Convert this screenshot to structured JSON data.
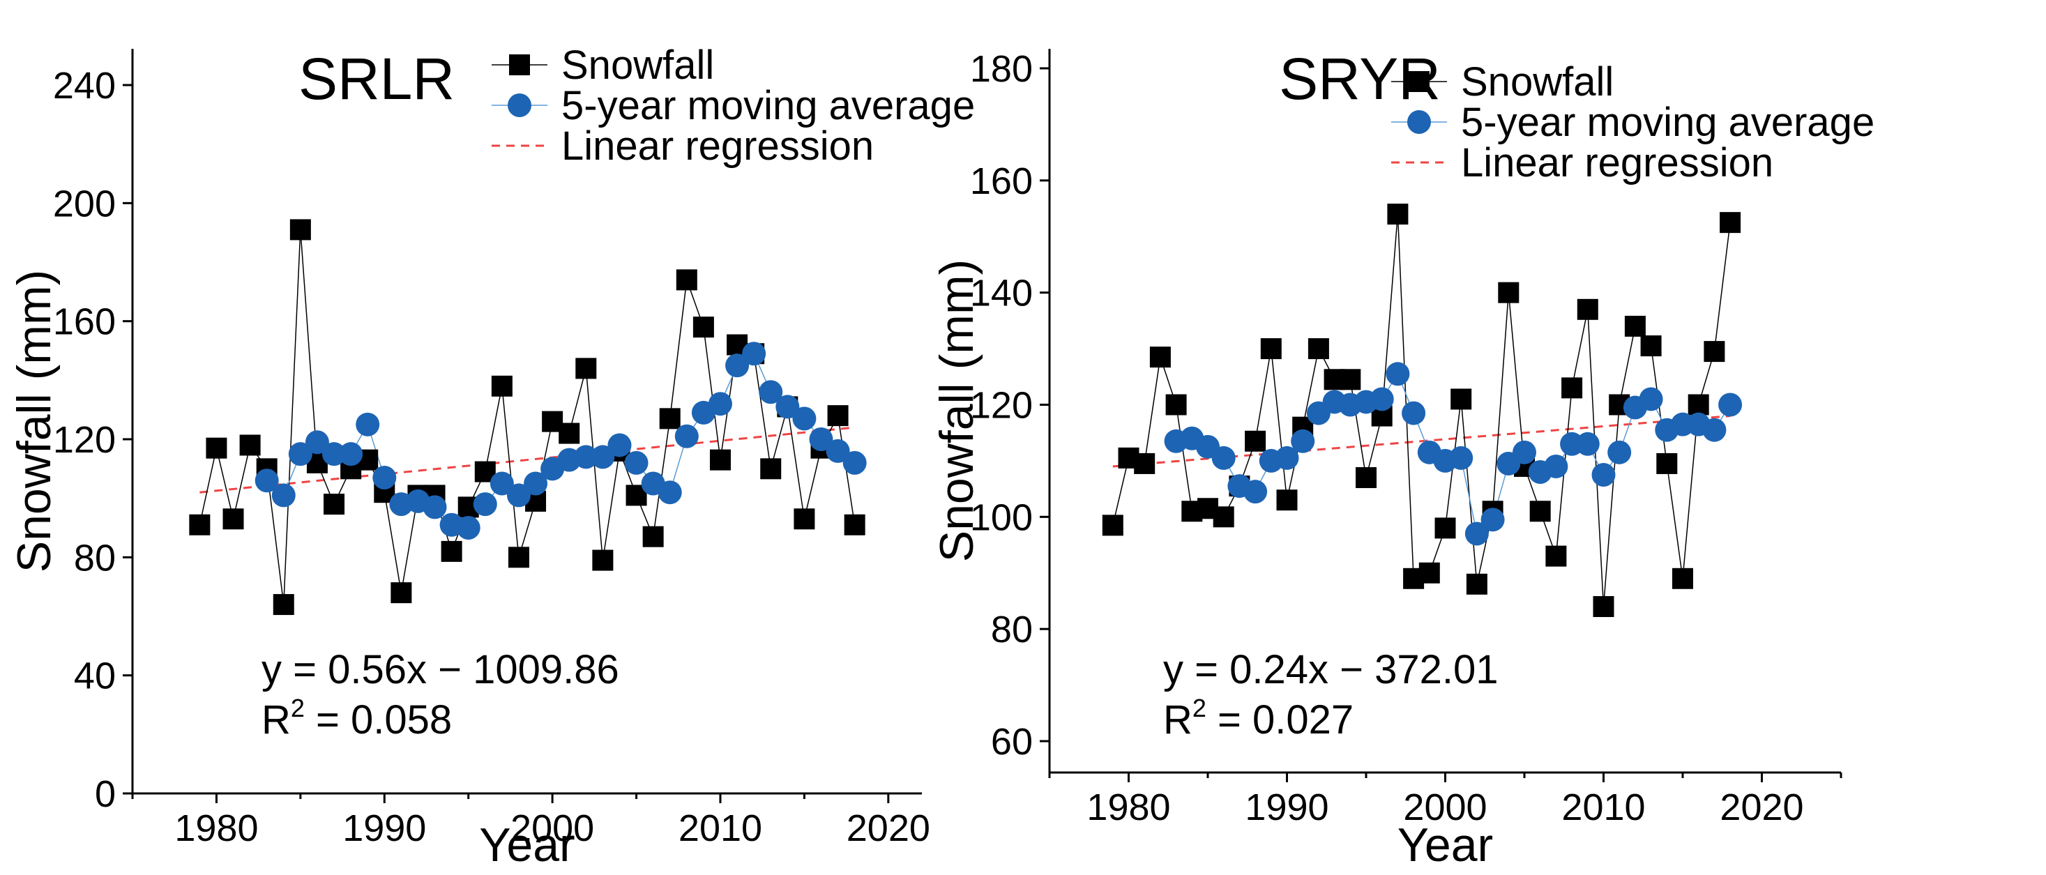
{
  "chart_data": [
    {
      "type": "line",
      "title": "SRLR",
      "xlabel": "Year",
      "ylabel": "Snowfall (mm)",
      "xlim": [
        1975,
        2022
      ],
      "ylim": [
        0,
        250
      ],
      "xticks": [
        1980,
        1990,
        2000,
        2010,
        2020
      ],
      "yticks": [
        0,
        40,
        80,
        120,
        160,
        200,
        240
      ],
      "grid": false,
      "legend_position": "top-right",
      "equation": "y = 0.56x − 1009.86",
      "r2_label": "R",
      "r2_sup": "2",
      "r2_value": " = 0.058",
      "regression": {
        "slope": 0.56,
        "intercept": -1009.86
      },
      "series": [
        {
          "name": "Snowfall",
          "style": "square",
          "color": "#000000",
          "x": [
            1979,
            1980,
            1981,
            1982,
            1983,
            1984,
            1985,
            1986,
            1987,
            1988,
            1989,
            1990,
            1991,
            1992,
            1993,
            1994,
            1995,
            1996,
            1997,
            1998,
            1999,
            2000,
            2001,
            2002,
            2003,
            2004,
            2005,
            2006,
            2007,
            2008,
            2009,
            2010,
            2011,
            2012,
            2013,
            2014,
            2015,
            2016,
            2017,
            2018
          ],
          "values": [
            91,
            117,
            93,
            118,
            110,
            64,
            191,
            112,
            98,
            110,
            113,
            102,
            68,
            101,
            101,
            82,
            97,
            109,
            138,
            80,
            99,
            126,
            122,
            144,
            79,
            116,
            101,
            87,
            127,
            174,
            158,
            113,
            152,
            149,
            110,
            131,
            93,
            117,
            128,
            91
          ]
        },
        {
          "name": "5-year moving average",
          "style": "circle",
          "color": "#1d64b4",
          "x": [
            1983,
            1984,
            1985,
            1986,
            1987,
            1988,
            1989,
            1990,
            1991,
            1992,
            1993,
            1994,
            1995,
            1996,
            1997,
            1998,
            1999,
            2000,
            2001,
            2002,
            2003,
            2004,
            2005,
            2006,
            2007,
            2008,
            2009,
            2010,
            2011,
            2012,
            2013,
            2014,
            2015,
            2016,
            2017,
            2018
          ],
          "values": [
            106,
            101,
            115,
            119,
            115,
            115,
            125,
            107,
            98,
            99,
            97,
            91,
            90,
            98,
            105,
            101,
            105,
            110,
            113,
            114,
            114,
            118,
            112,
            105,
            102,
            121,
            129,
            132,
            145,
            149,
            136,
            131,
            127,
            120,
            116,
            112
          ]
        },
        {
          "name": "Linear regression",
          "style": "dashed",
          "color": "#ee4444",
          "x": [
            1979,
            2018
          ],
          "values": [
            102,
            124
          ]
        }
      ]
    },
    {
      "type": "line",
      "title": "SRYR",
      "xlabel": "Year",
      "ylabel": "Snowfall (mm)",
      "xlim": [
        1975,
        2025
      ],
      "ylim": [
        50,
        180
      ],
      "xticks": [
        1980,
        1990,
        2000,
        2010,
        2020
      ],
      "yticks": [
        60,
        80,
        100,
        120,
        140,
        160,
        180
      ],
      "grid": false,
      "legend_position": "top-right",
      "equation": "y = 0.24x − 372.01",
      "r2_label": "R",
      "r2_sup": "2",
      "r2_value": " = 0.027",
      "regression": {
        "slope": 0.24,
        "intercept": -372.01
      },
      "series": [
        {
          "name": "Snowfall",
          "style": "square",
          "color": "#000000",
          "x": [
            1979,
            1980,
            1981,
            1982,
            1983,
            1984,
            1985,
            1986,
            1987,
            1988,
            1989,
            1990,
            1991,
            1992,
            1993,
            1994,
            1995,
            1996,
            1997,
            1998,
            1999,
            2000,
            2001,
            2002,
            2003,
            2004,
            2005,
            2006,
            2007,
            2008,
            2009,
            2010,
            2011,
            2012,
            2013,
            2014,
            2015,
            2016,
            2017,
            2018
          ],
          "values": [
            98.5,
            110.5,
            109.5,
            128.5,
            120,
            101,
            101.5,
            100,
            105.5,
            113.5,
            130,
            103,
            116,
            130,
            124.5,
            124.5,
            107,
            118,
            154,
            89,
            90,
            98,
            121,
            88,
            101,
            140,
            109,
            101,
            93,
            123,
            137,
            84,
            120,
            134,
            130.5,
            109.5,
            89,
            120,
            129.5,
            152.5
          ]
        },
        {
          "name": "5-year moving average",
          "style": "circle",
          "color": "#1d64b4",
          "x": [
            1983,
            1984,
            1985,
            1986,
            1987,
            1988,
            1989,
            1990,
            1991,
            1992,
            1993,
            1994,
            1995,
            1996,
            1997,
            1998,
            1999,
            2000,
            2001,
            2002,
            2003,
            2004,
            2005,
            2006,
            2007,
            2008,
            2009,
            2010,
            2011,
            2012,
            2013,
            2014,
            2015,
            2016,
            2017,
            2018
          ],
          "values": [
            113.5,
            114,
            112.5,
            110.5,
            105.5,
            104.5,
            110,
            110.5,
            113.5,
            118.5,
            120.5,
            120,
            120.5,
            121,
            125.5,
            118.5,
            111.5,
            110,
            110.5,
            97,
            99.5,
            109.5,
            111.5,
            108,
            109,
            113,
            113,
            107.5,
            111.5,
            119.5,
            121,
            115.5,
            116.5,
            116.5,
            115.5,
            120
          ]
        },
        {
          "name": "Linear regression",
          "style": "dashed",
          "color": "#ee4444",
          "x": [
            1979,
            2018
          ],
          "values": [
            109,
            118
          ]
        }
      ]
    }
  ]
}
